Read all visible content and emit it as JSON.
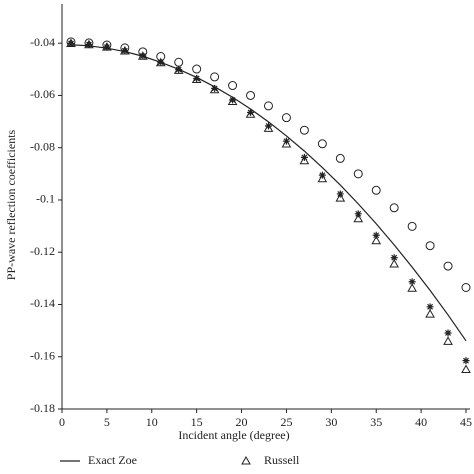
{
  "chart_data": {
    "type": "line",
    "x_label": "Incident angle (degree)",
    "y_label": "PP-wave reflection coefficients",
    "x": [
      1,
      3,
      5,
      7,
      9,
      11,
      13,
      15,
      17,
      19,
      21,
      23,
      25,
      27,
      29,
      31,
      33,
      35,
      37,
      39,
      41,
      43,
      45
    ],
    "series": [
      {
        "name": "Exact Zoe",
        "color": "#222222",
        "marker": "none",
        "values": [
          -0.0406,
          -0.041,
          -0.0419,
          -0.0432,
          -0.045,
          -0.0473,
          -0.05,
          -0.0531,
          -0.0567,
          -0.0607,
          -0.0652,
          -0.0701,
          -0.0755,
          -0.0813,
          -0.0876,
          -0.0943,
          -0.1015,
          -0.1091,
          -0.1172,
          -0.1257,
          -0.1346,
          -0.144,
          -0.1539
        ]
      },
      {
        "name": "Russell",
        "color": "#222222",
        "marker": "triangle",
        "values": [
          -0.0401,
          -0.0406,
          -0.0415,
          -0.043,
          -0.045,
          -0.0475,
          -0.0504,
          -0.0539,
          -0.0578,
          -0.0623,
          -0.0672,
          -0.0726,
          -0.0786,
          -0.085,
          -0.0919,
          -0.0993,
          -0.1072,
          -0.1156,
          -0.1245,
          -0.1338,
          -0.1437,
          -0.1541,
          -0.1649
        ]
      },
      {
        "color": "#222222",
        "marker": "circle",
        "values": [
          -0.0395,
          -0.0399,
          -0.0407,
          -0.0418,
          -0.0433,
          -0.0451,
          -0.0473,
          -0.0499,
          -0.0529,
          -0.0562,
          -0.06,
          -0.064,
          -0.0685,
          -0.0733,
          -0.0785,
          -0.0841,
          -0.09,
          -0.0963,
          -0.103,
          -0.1101,
          -0.1175,
          -0.1253,
          -0.1335
        ]
      },
      {
        "color": "#222222",
        "marker": "asterisk",
        "values": [
          -0.0401,
          -0.0405,
          -0.0415,
          -0.0429,
          -0.0449,
          -0.0473,
          -0.0501,
          -0.0535,
          -0.0573,
          -0.0617,
          -0.0665,
          -0.0717,
          -0.0775,
          -0.0837,
          -0.0905,
          -0.0977,
          -0.1053,
          -0.1135,
          -0.1221,
          -0.1313,
          -0.1409,
          -0.1509,
          -0.1615
        ]
      }
    ],
    "xlim": [
      0,
      45
    ],
    "ylim": [
      -0.18,
      -0.025
    ],
    "xticks": [
      0,
      5,
      10,
      15,
      20,
      25,
      30,
      35,
      40,
      45
    ],
    "yticks": [
      -0.04,
      -0.06,
      -0.08,
      -0.1,
      -0.12,
      -0.14,
      -0.16,
      -0.18
    ]
  }
}
